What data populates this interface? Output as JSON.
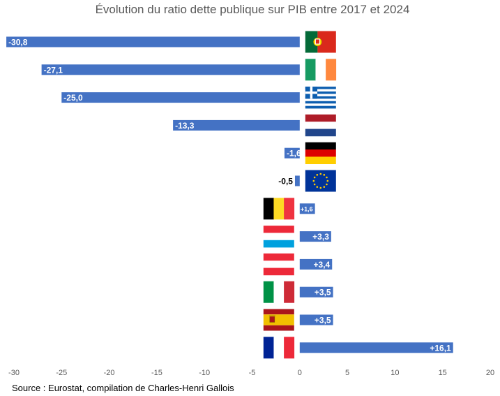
{
  "chart_data": {
    "type": "bar",
    "orientation": "horizontal",
    "title": "Évolution du ratio dette publique sur PIB entre 2017 et 2024",
    "xlim": [
      -30,
      20
    ],
    "xticks": [
      -30,
      -25,
      -20,
      -15,
      -10,
      -5,
      0,
      5,
      10,
      15,
      20
    ],
    "grid": false,
    "legend": "none",
    "bar_color": "#4472C4",
    "series": [
      {
        "values": [
          -30.8,
          -27.1,
          -25.0,
          -13.3,
          -1.6,
          -0.5,
          1.6,
          3.3,
          3.4,
          3.5,
          3.5,
          16.1
        ]
      }
    ],
    "data_labels": [
      "-30,8",
      "-27,1",
      "-25,0",
      "-13,3",
      "-1,6",
      "-0,5",
      "+1,6",
      "+3,3",
      "+3,4",
      "+3,5",
      "+3,5",
      "+16,1"
    ],
    "category_flags": [
      "portugal-flag",
      "ireland-flag",
      "greece-flag",
      "netherlands-flag",
      "germany-flag",
      "eu-flag",
      "belgium-flag",
      "luxembourg-flag",
      "austria-flag",
      "italy-flag",
      "spain-flag",
      "france-flag"
    ]
  },
  "source": "Source : Eurostat, compilation de Charles-Henri Gallois"
}
